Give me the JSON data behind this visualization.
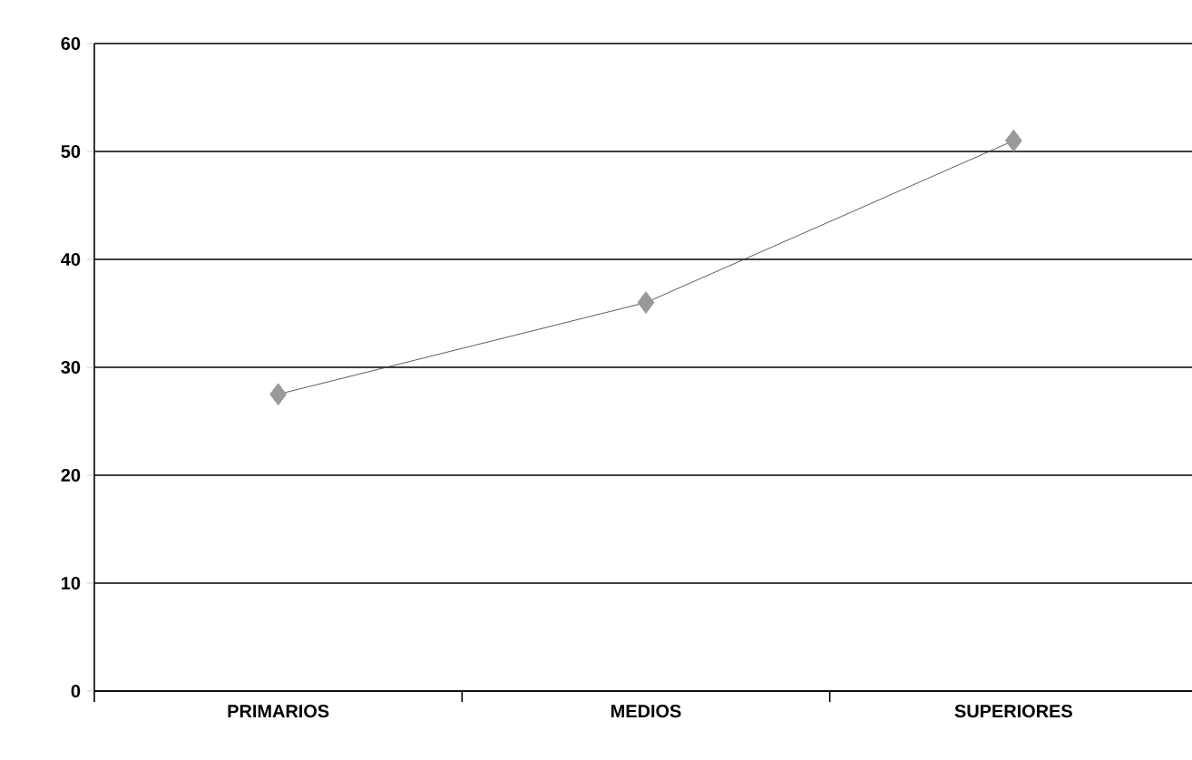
{
  "chart_data": {
    "type": "line",
    "categories": [
      "PRIMARIOS",
      "MEDIOS",
      "SUPERIORES"
    ],
    "series": [
      {
        "color": "#333333",
        "values": [
          27.5,
          36,
          51
        ]
      }
    ],
    "ylim": [
      0,
      60
    ],
    "yticks": [
      0,
      10,
      20,
      30,
      40,
      50,
      60
    ],
    "grid": "y",
    "marker": "diamond"
  }
}
